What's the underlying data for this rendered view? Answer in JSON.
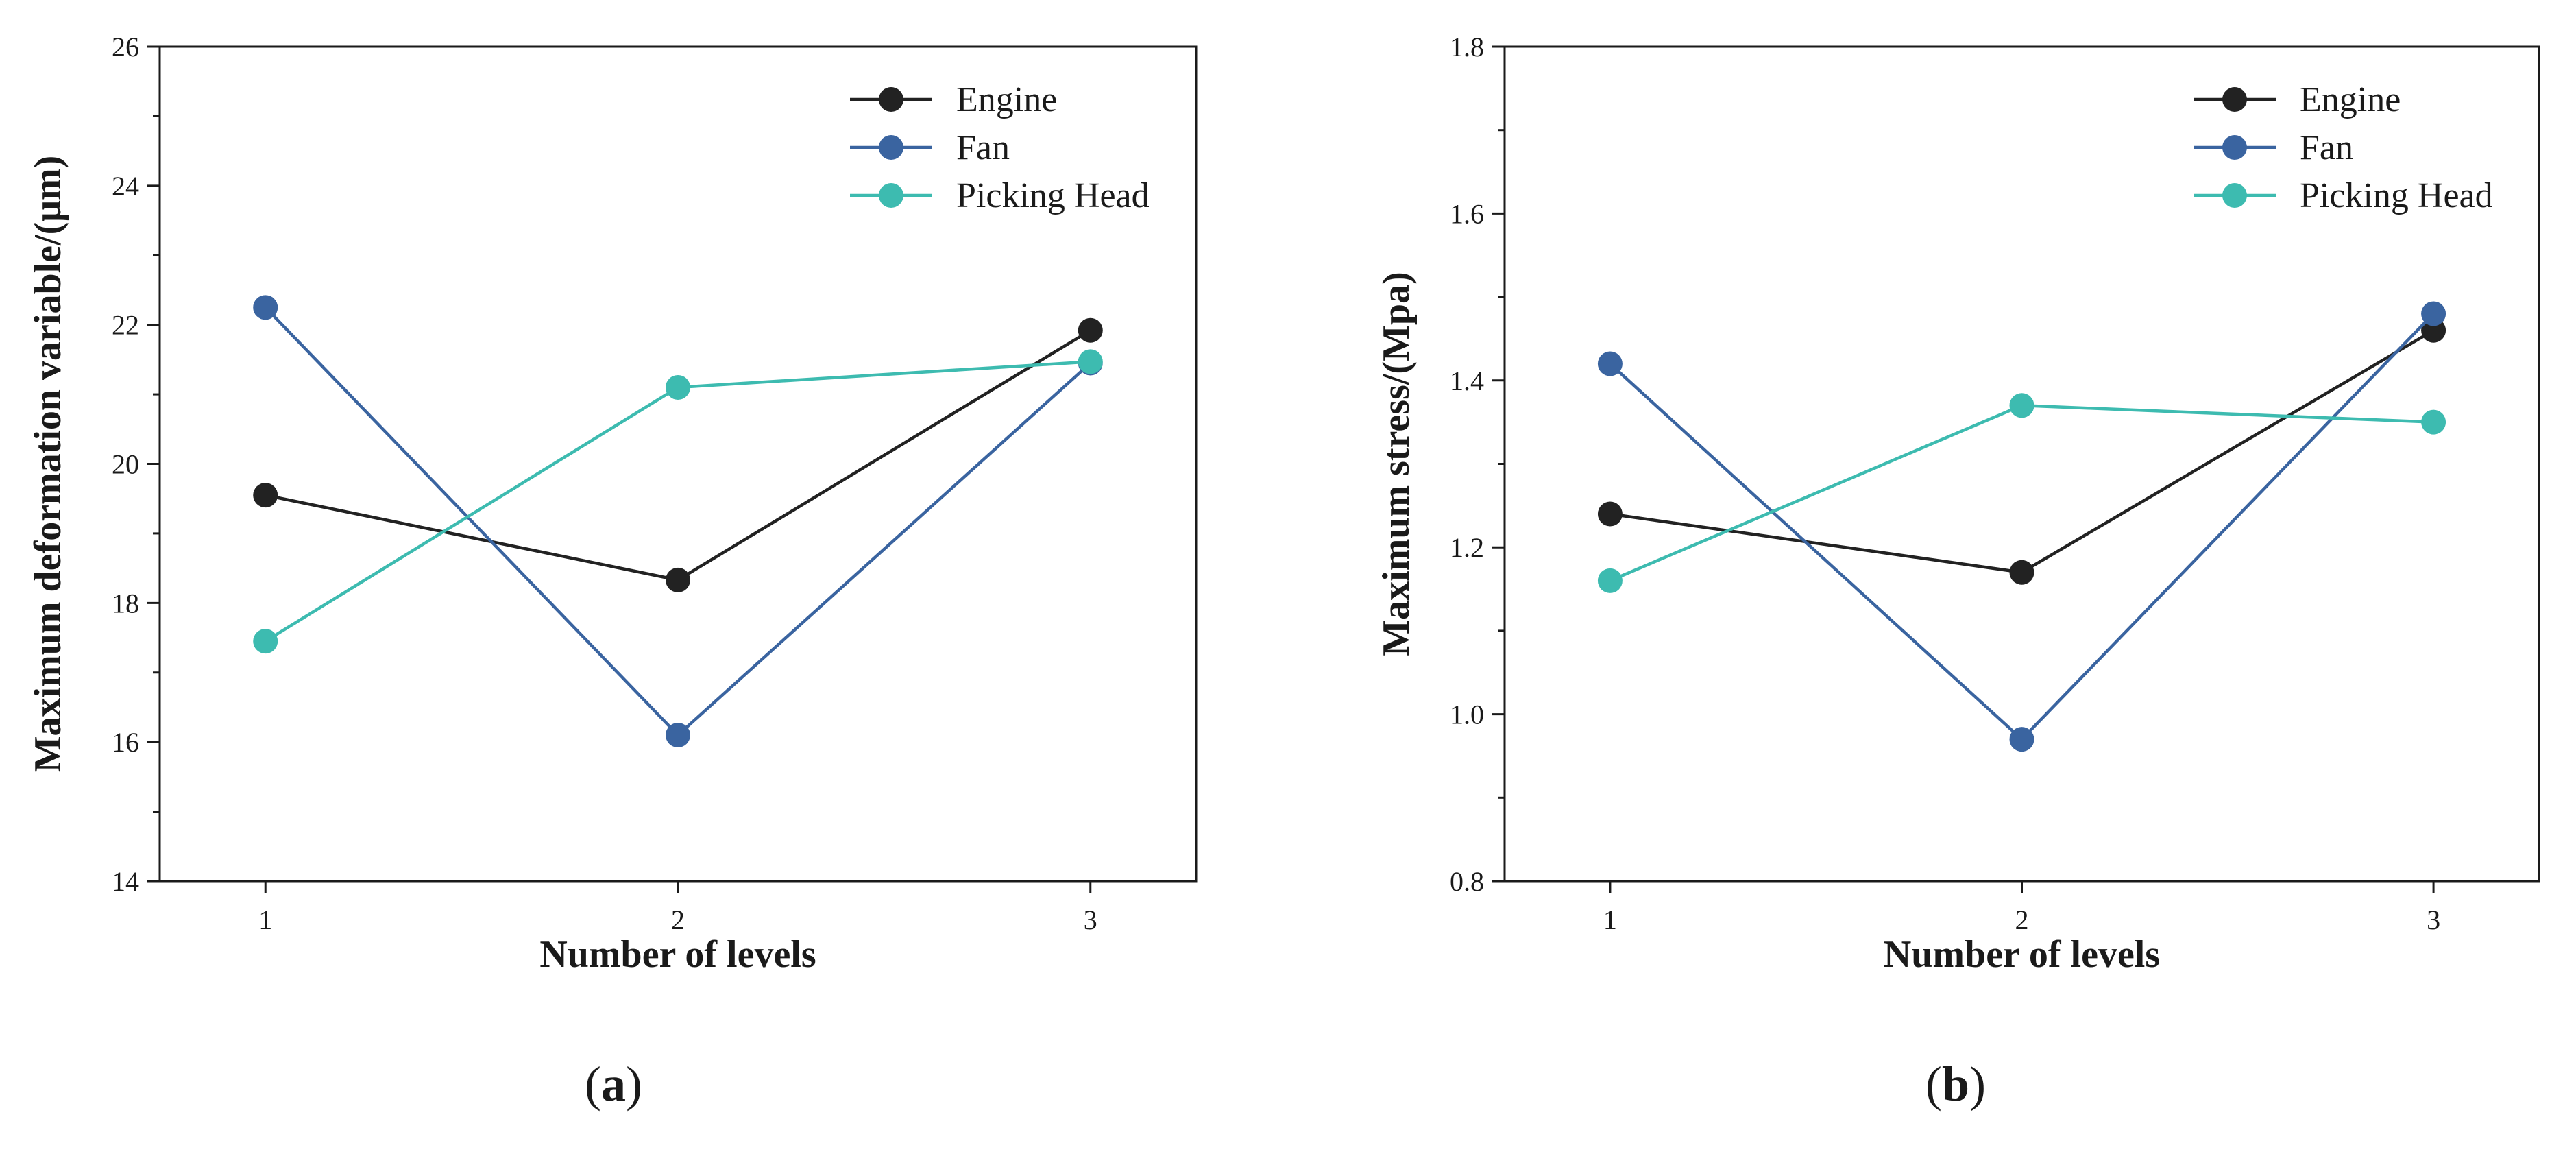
{
  "chart_data": [
    {
      "type": "line",
      "panel_label": {
        "open": "(",
        "letter": "a",
        "close": ")"
      },
      "categories": [
        "1",
        "2",
        "3"
      ],
      "series": [
        {
          "name": "Engine",
          "values": [
            19.55,
            18.33,
            21.92
          ],
          "color": "#222222"
        },
        {
          "name": "Fan",
          "values": [
            22.25,
            16.1,
            21.45
          ],
          "color": "#3a64a0"
        },
        {
          "name": "Picking Head",
          "values": [
            17.45,
            21.1,
            21.47
          ],
          "color": "#3dbbb0"
        }
      ],
      "xlabel": "Number of levels",
      "ylabel": "Maximum deformation variable/(μm)",
      "ylim": [
        14,
        26
      ],
      "yticks": [
        "14",
        "16",
        "18",
        "20",
        "22",
        "24",
        "26"
      ],
      "legend_position": "top-right",
      "grid": false
    },
    {
      "type": "line",
      "panel_label": {
        "open": "(",
        "letter": "b",
        "close": ")"
      },
      "categories": [
        "1",
        "2",
        "3"
      ],
      "series": [
        {
          "name": "Engine",
          "values": [
            1.24,
            1.17,
            1.46
          ],
          "color": "#222222"
        },
        {
          "name": "Fan",
          "values": [
            1.42,
            0.97,
            1.48
          ],
          "color": "#3a64a0"
        },
        {
          "name": "Picking Head",
          "values": [
            1.16,
            1.37,
            1.35
          ],
          "color": "#3dbbb0"
        }
      ],
      "xlabel": "Number of levels",
      "ylabel": "Maximum stress/(Mpa)",
      "ylim": [
        0.8,
        1.8
      ],
      "yticks": [
        "0.8",
        "1.0",
        "1.2",
        "1.4",
        "1.6",
        "1.8"
      ],
      "legend_position": "top-right",
      "grid": false
    }
  ]
}
